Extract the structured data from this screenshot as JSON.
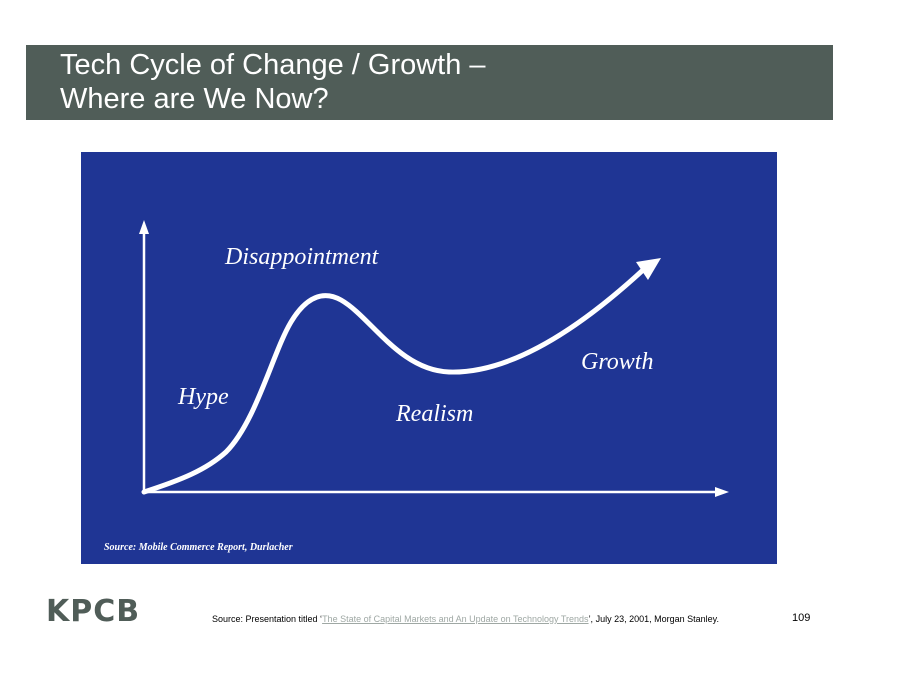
{
  "slide": {
    "title_line1": "Tech Cycle of Change / Growth –",
    "title_line2": "Where are We Now?",
    "page_number": "109"
  },
  "figure": {
    "labels": {
      "disappointment": "Disappointment",
      "hype": "Hype",
      "realism": "Realism",
      "growth": "Growth"
    },
    "source": "Source: Mobile Commerce Report, Durlacher",
    "colors": {
      "background": "#1f3594",
      "curve": "#ffffff"
    }
  },
  "footer": {
    "logo": "KPCB",
    "source_prefix": "Source: Presentation titled ‘",
    "source_link": "The State of Capital Markets and An Update on Technology Trends",
    "source_suffix": "’, July 23, 2001, Morgan Stanley."
  },
  "colors": {
    "title_bar": "#505d58",
    "logo": "#505d58"
  }
}
